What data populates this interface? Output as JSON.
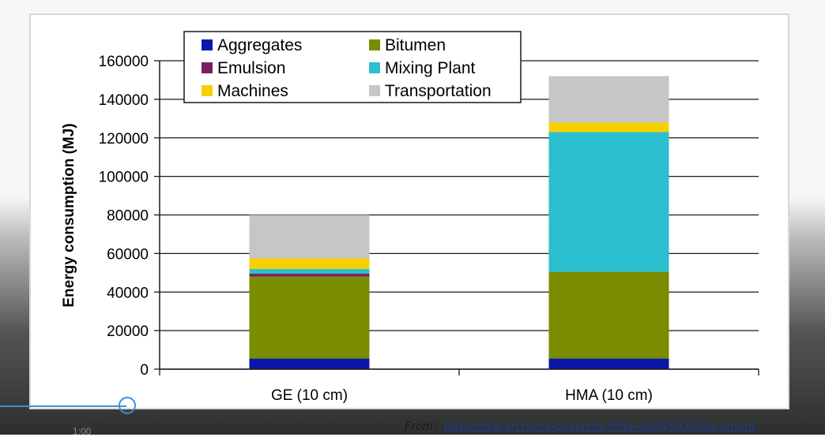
{
  "chart_data": {
    "type": "bar",
    "stacked": true,
    "categories": [
      "GE (10 cm)",
      "HMA (10 cm)"
    ],
    "series": [
      {
        "name": "Aggregates",
        "color": "#0a17a8",
        "values": [
          5500,
          5500
        ]
      },
      {
        "name": "Bitumen",
        "color": "#7a8c00",
        "values": [
          42500,
          45000
        ]
      },
      {
        "name": "Emulsion",
        "color": "#7c1f5e",
        "values": [
          1500,
          0
        ]
      },
      {
        "name": "Mixing Plant",
        "color": "#2bbfcf",
        "values": [
          2500,
          72500
        ]
      },
      {
        "name": "Machines",
        "color": "#f7d000",
        "values": [
          5500,
          5000
        ]
      },
      {
        "name": "Transportation",
        "color": "#c6c6c6",
        "values": [
          22500,
          24000
        ]
      }
    ],
    "ylabel": "Energy consumption (MJ)",
    "xlabel": "",
    "ylim": [
      0,
      160000
    ],
    "yticks": [
      "0",
      "20000",
      "40000",
      "60000",
      "80000",
      "100000",
      "120000",
      "140000",
      "160000"
    ],
    "grid": true,
    "legend_position": "top-left"
  },
  "source": {
    "prefix": "From：",
    "link": "https://hal.archives-ouvertes.fr/hal-00845930/document"
  },
  "footer": {
    "stub": "1:00"
  }
}
